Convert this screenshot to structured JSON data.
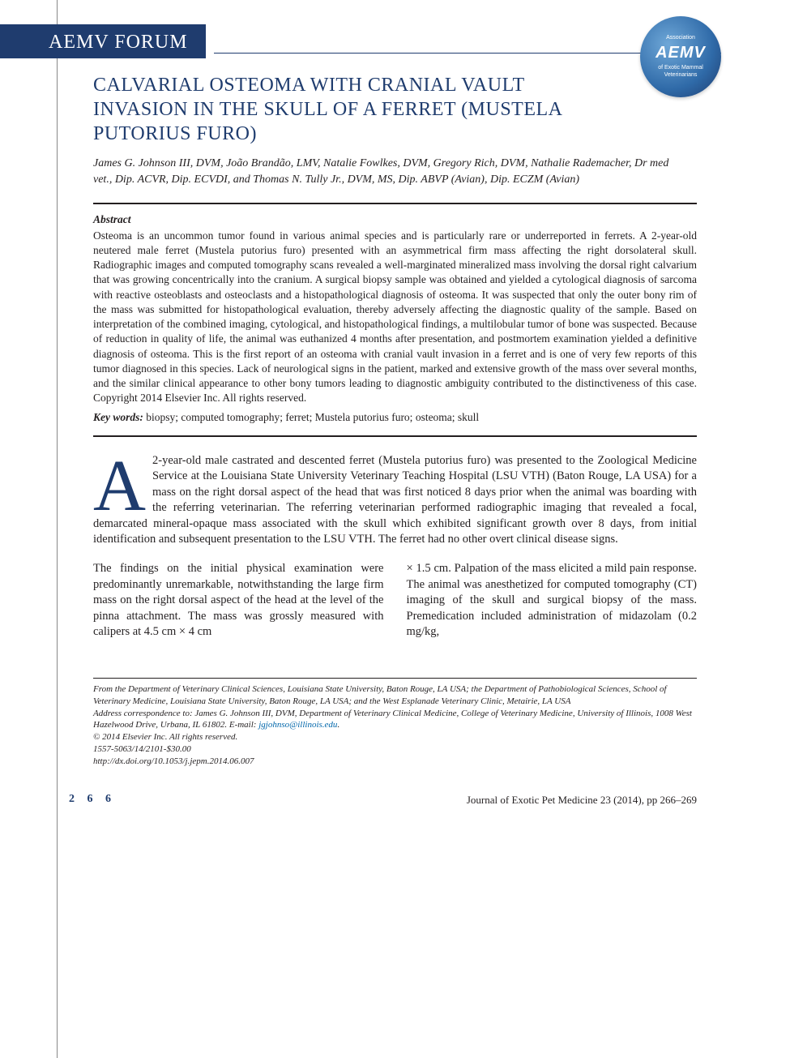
{
  "colors": {
    "brand_blue": "#1f3c6e",
    "text": "#231f20",
    "logo_gradient_inner": "#6fa8d8",
    "logo_gradient_mid": "#2f6aa8",
    "logo_gradient_outer": "#1f3c6e",
    "link": "#0066aa",
    "background": "#ffffff",
    "rule_grey": "#888888"
  },
  "typography": {
    "body_family": "Georgia, 'Times New Roman', serif",
    "title_size_pt": 18,
    "body_size_pt": 11,
    "abstract_size_pt": 10,
    "footer_size_pt": 8,
    "dropcap_size_pt": 68
  },
  "header": {
    "forum_label": "AEMV FORUM",
    "logo": {
      "top_text": "Association",
      "acronym": "AEMV",
      "bottom_text_1": "of Exotic Mammal",
      "bottom_text_2": "Veterinarians"
    }
  },
  "article": {
    "title": "CALVARIAL OSTEOMA WITH CRANIAL VAULT INVASION IN THE SKULL OF A FERRET (MUSTELA PUTORIUS FURO)",
    "authors": "James G. Johnson III, DVM, João Brandão, LMV, Natalie Fowlkes, DVM, Gregory Rich, DVM, Nathalie Rademacher, Dr med vet., Dip. ACVR, Dip. ECVDI, and Thomas N. Tully Jr., DVM, MS, Dip. ABVP (Avian), Dip. ECZM (Avian)"
  },
  "abstract": {
    "label": "Abstract",
    "text": "Osteoma is an uncommon tumor found in various animal species and is particularly rare or underreported in ferrets. A 2-year-old neutered male ferret (Mustela putorius furo) presented with an asymmetrical firm mass affecting the right dorsolateral skull. Radiographic images and computed tomography scans revealed a well-marginated mineralized mass involving the dorsal right calvarium that was growing concentrically into the cranium. A surgical biopsy sample was obtained and yielded a cytological diagnosis of sarcoma with reactive osteoblasts and osteoclasts and a histopathological diagnosis of osteoma. It was suspected that only the outer bony rim of the mass was submitted for histopathological evaluation, thereby adversely affecting the diagnostic quality of the sample. Based on interpretation of the combined imaging, cytological, and histopathological findings, a multilobular tumor of bone was suspected. Because of reduction in quality of life, the animal was euthanized 4 months after presentation, and postmortem examination yielded a definitive diagnosis of osteoma. This is the first report of an osteoma with cranial vault invasion in a ferret and is one of very few reports of this tumor diagnosed in this species. Lack of neurological signs in the patient, marked and extensive growth of the mass over several months, and the similar clinical appearance to other bony tumors leading to diagnostic ambiguity contributed to the distinctiveness of this case. Copyright 2014 Elsevier Inc. All rights reserved."
  },
  "keywords": {
    "label": "Key words:",
    "text": " biopsy; computed tomography; ferret; Mustela putorius furo; osteoma; skull"
  },
  "body": {
    "dropcap": "A",
    "intro": " 2-year-old male castrated and descented ferret (Mustela putorius furo) was presented to the Zoological Medicine Service at the Louisiana State University Veterinary Teaching Hospital (LSU VTH) (Baton Rouge, LA USA) for a mass on the right dorsal aspect of the head that was first noticed 8 days prior when the animal was boarding with the referring veterinarian. The referring veterinarian performed radiographic imaging that revealed a focal, demarcated mineral-opaque mass associated with the skull which exhibited significant growth over 8 days, from initial identification and subsequent presentation to the LSU VTH. The ferret had no other overt clinical disease signs.",
    "col1": "The findings on the initial physical examination were predominantly unremarkable, notwithstanding the large firm mass on the right dorsal aspect of the head at the level of the pinna attachment. The mass was grossly measured with calipers at 4.5 cm × 4 cm",
    "col2": "× 1.5 cm. Palpation of the mass elicited a mild pain response. The animal was anesthetized for computed tomography (CT) imaging of the skull and surgical biopsy of the mass. Premedication included administration of midazolam (0.2 mg/kg,"
  },
  "footer": {
    "affiliation": "From the Department of Veterinary Clinical Sciences, Louisiana State University, Baton Rouge, LA USA; the Department of Pathobiological Sciences, School of Veterinary Medicine, Louisiana State University, Baton Rouge, LA USA; and the West Esplanade Veterinary Clinic, Metairie, LA USA",
    "correspondence_prefix": "Address correspondence to: James G. Johnson III, DVM, Department of Veterinary Clinical Medicine, College of Veterinary Medicine, University of Illinois, 1008 West Hazelwood Drive, Urbana, IL 61802. E-mail: ",
    "correspondence_email": "jgjohnso@illinois.edu",
    "correspondence_suffix": ".",
    "copyright": "© 2014 Elsevier Inc. All rights reserved.",
    "issn": "1557-5063/14/2101-$30.00",
    "doi": "http://dx.doi.org/10.1053/j.jepm.2014.06.007"
  },
  "page_footer": {
    "page_number": "2 6 6",
    "journal_ref": "Journal of Exotic Pet Medicine 23 (2014), pp 266–269"
  }
}
